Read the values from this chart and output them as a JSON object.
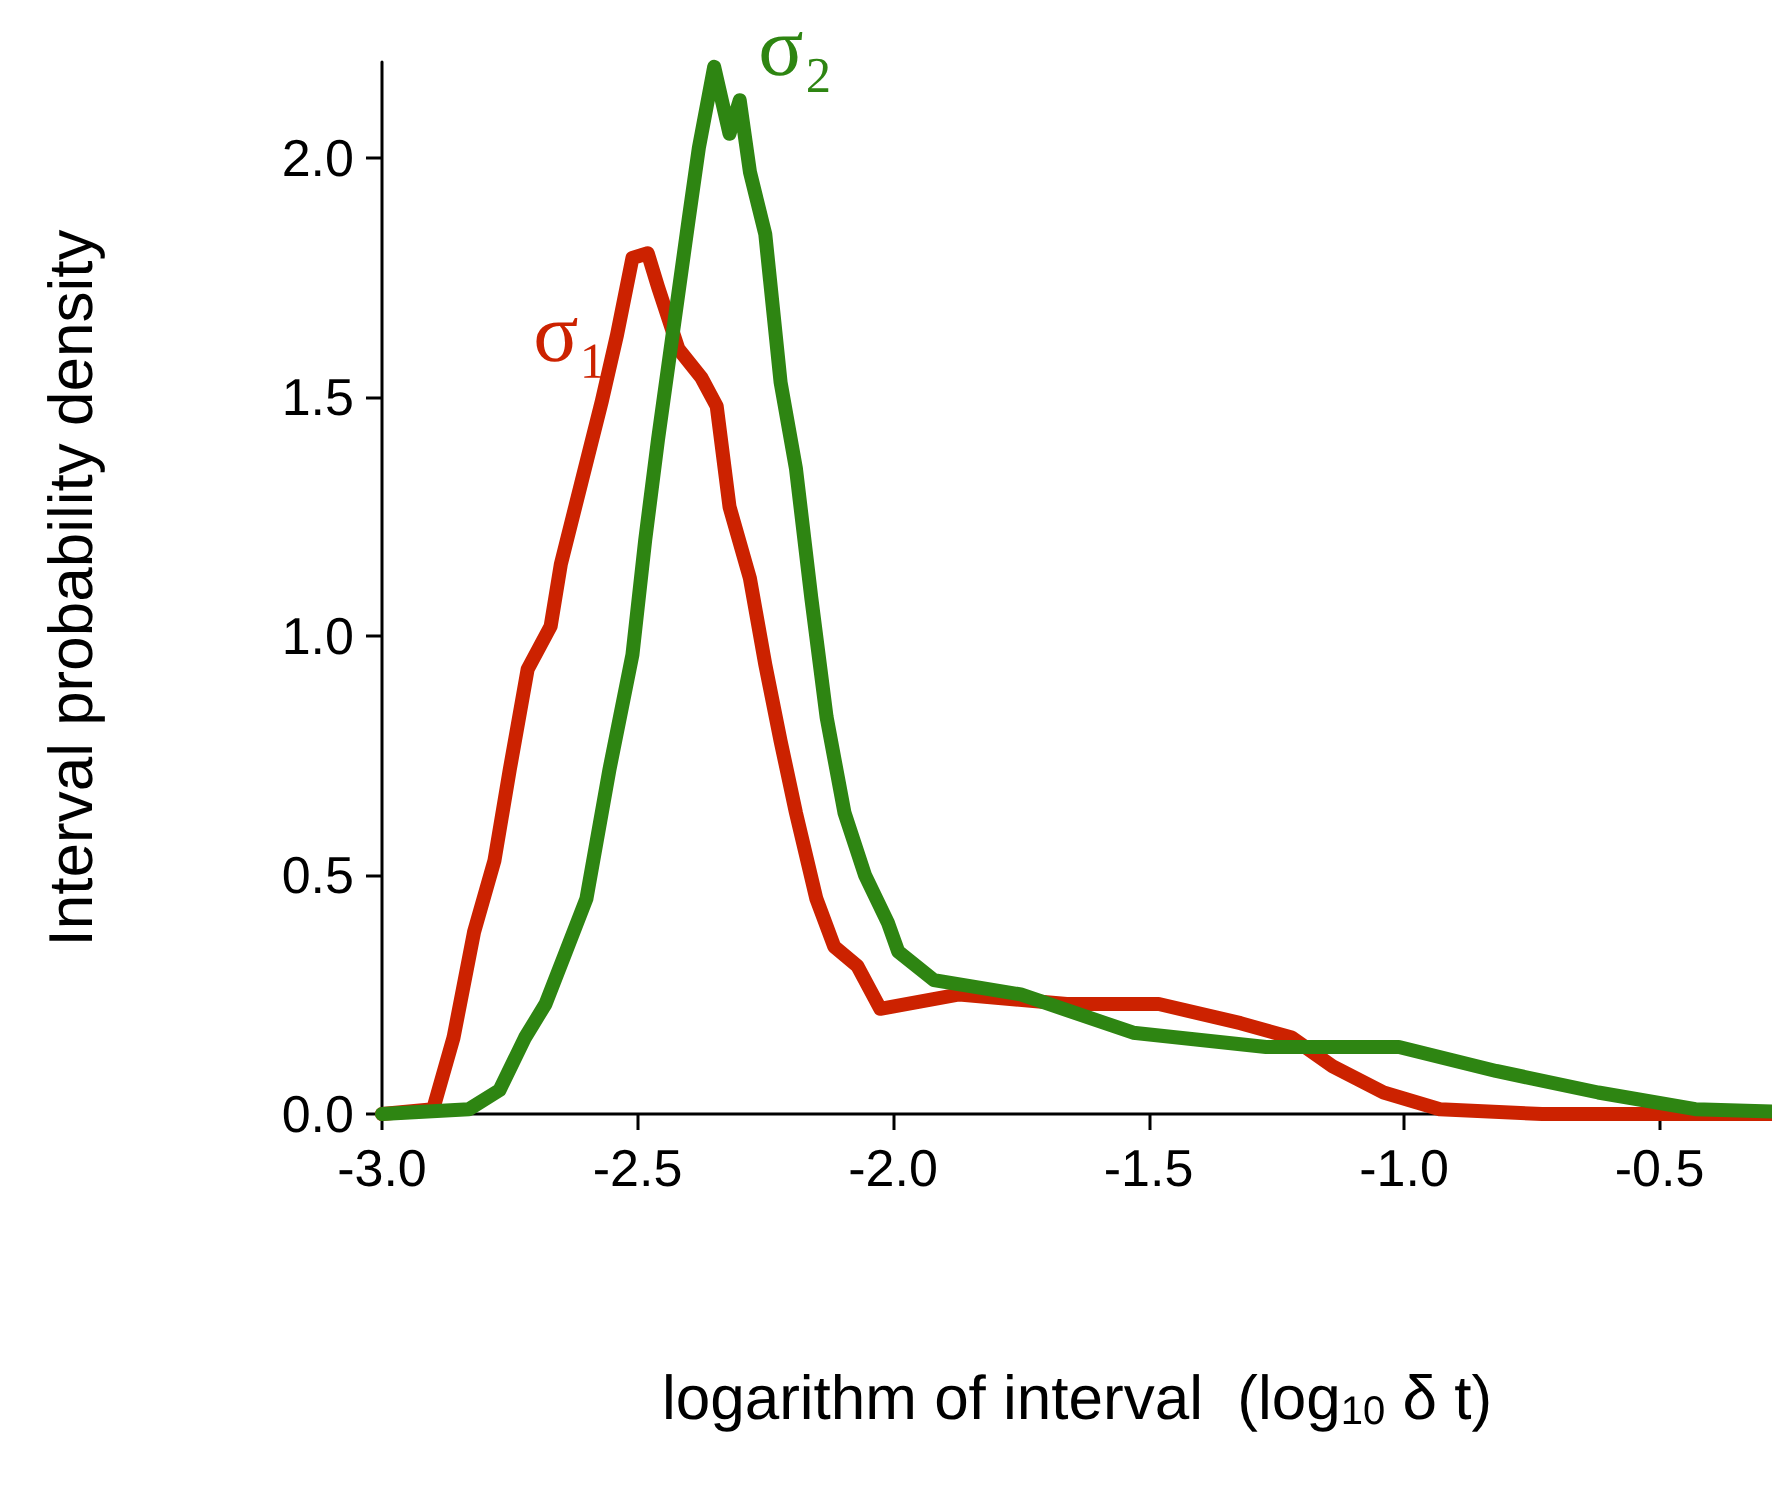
{
  "chart_data": {
    "type": "line",
    "xlabel": "logarithm of interval  (log$_{10}$ δ t)",
    "ylabel": "Interval probability density",
    "xlim": [
      -3.0,
      -0.28
    ],
    "ylim": [
      0,
      2.2
    ],
    "xticks": [
      {
        "value": -3,
        "label": "-3.0"
      },
      {
        "value": -2.5,
        "label": "-2.5"
      },
      {
        "value": -2,
        "label": "-2.0"
      },
      {
        "value": -1.5,
        "label": "-1.5"
      },
      {
        "value": -1,
        "label": "-1.0"
      },
      {
        "value": -0.5,
        "label": "-0.5"
      }
    ],
    "yticks": [
      {
        "value": 0,
        "label": "0.0"
      },
      {
        "value": 0.5,
        "label": "0.5"
      },
      {
        "value": 1,
        "label": "1.0"
      },
      {
        "value": 1.5,
        "label": "1.5"
      },
      {
        "value": 2,
        "label": "2.0"
      }
    ],
    "grid": false,
    "legend": false,
    "marker": "none",
    "line_style": "solid",
    "series": [
      {
        "name": "σ₁",
        "color": "#cc2200",
        "x": [
          -3.0,
          -2.9,
          -2.86,
          -2.82,
          -2.78,
          -2.75,
          -2.715,
          -2.67,
          -2.65,
          -2.61,
          -2.57,
          -2.54,
          -2.51,
          -2.48,
          -2.46,
          -2.42,
          -2.375,
          -2.345,
          -2.32,
          -2.28,
          -2.25,
          -2.22,
          -2.19,
          -2.15,
          -2.115,
          -2.07,
          -2.025,
          -1.87,
          -1.66,
          -1.48,
          -1.32,
          -1.22,
          -1.14,
          -1.04,
          -0.93,
          -0.73,
          -0.28
        ],
        "values": [
          0,
          0.01,
          0.16,
          0.38,
          0.53,
          0.72,
          0.93,
          1.02,
          1.15,
          1.32,
          1.49,
          1.63,
          1.79,
          1.8,
          1.73,
          1.6,
          1.54,
          1.48,
          1.27,
          1.12,
          0.94,
          0.78,
          0.63,
          0.45,
          0.35,
          0.31,
          0.22,
          0.25,
          0.23,
          0.23,
          0.19,
          0.16,
          0.1,
          0.045,
          0.01,
          0,
          0
        ]
      },
      {
        "name": "σ₂",
        "color": "#2e8512",
        "x": [
          -3.0,
          -2.83,
          -2.77,
          -2.72,
          -2.68,
          -2.64,
          -2.6,
          -2.555,
          -2.51,
          -2.485,
          -2.46,
          -2.43,
          -2.4,
          -2.38,
          -2.35,
          -2.32,
          -2.3,
          -2.28,
          -2.25,
          -2.22,
          -2.19,
          -2.16,
          -2.13,
          -2.095,
          -2.055,
          -2.01,
          -1.99,
          -1.92,
          -1.75,
          -1.53,
          -1.27,
          -1.01,
          -0.82,
          -0.62,
          -0.43,
          -0.28
        ],
        "values": [
          0,
          0.01,
          0.05,
          0.16,
          0.23,
          0.34,
          0.45,
          0.72,
          0.96,
          1.2,
          1.41,
          1.64,
          1.87,
          2.02,
          2.19,
          2.05,
          2.12,
          1.97,
          1.84,
          1.53,
          1.35,
          1.08,
          0.83,
          0.63,
          0.5,
          0.4,
          0.34,
          0.28,
          0.25,
          0.17,
          0.14,
          0.14,
          0.09,
          0.045,
          0.01,
          0.005
        ]
      }
    ]
  }
}
